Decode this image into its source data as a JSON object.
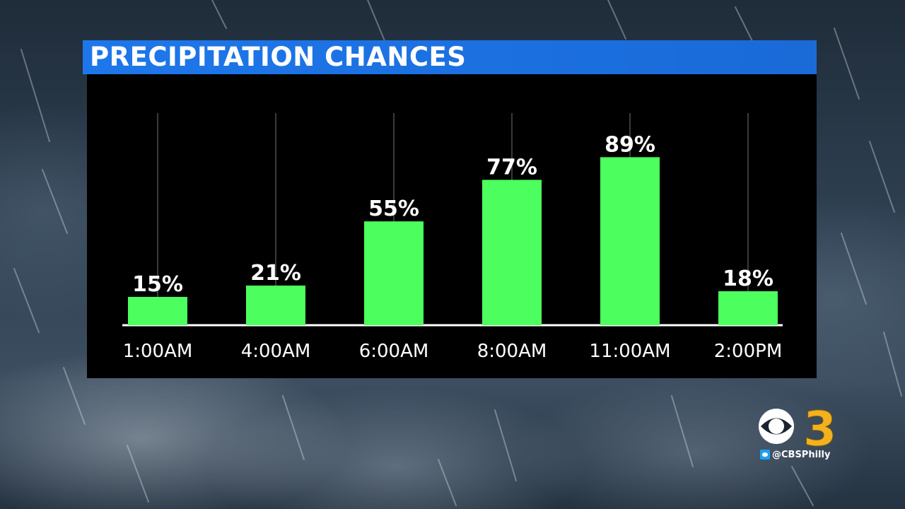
{
  "chart_data": {
    "type": "bar",
    "title": "PRECIPITATION CHANCES",
    "categories": [
      "1:00AM",
      "4:00AM",
      "6:00AM",
      "8:00AM",
      "11:00AM",
      "2:00PM"
    ],
    "values": [
      15,
      21,
      55,
      77,
      89,
      18
    ],
    "value_labels": [
      "15%",
      "21%",
      "55%",
      "77%",
      "89%",
      "18%"
    ],
    "ylim": [
      0,
      100
    ],
    "grid": true,
    "colors": {
      "bar": "#4dff5e",
      "title_bar": "#1e77ea",
      "panel": "#000000"
    }
  },
  "branding": {
    "station_number": "3",
    "handle": "@CBSPhilly",
    "twitter_icon": "twitter-icon",
    "network_icon": "cbs-eye-icon"
  }
}
